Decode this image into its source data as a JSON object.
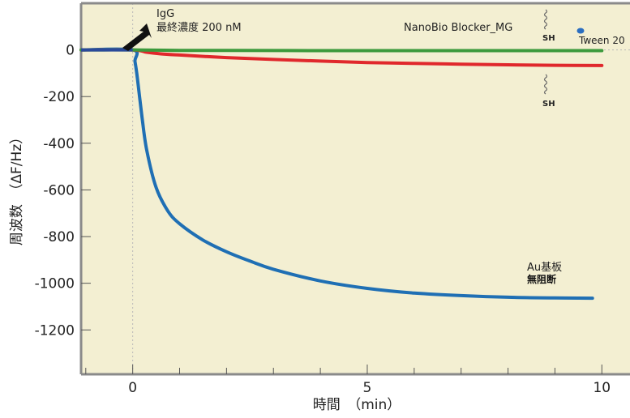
{
  "chart_data": {
    "type": "line",
    "title": "",
    "xlabel": "時間　（min）",
    "ylabel": "周波数　（ΔF/Hz）",
    "xlim": [
      -1.1,
      10.6
    ],
    "ylim": [
      -1390,
      200
    ],
    "x_ticks": [
      0,
      5,
      10
    ],
    "x_tick_labels": [
      "0",
      "5",
      "10"
    ],
    "y_ticks": [
      0,
      -200,
      -400,
      -600,
      -800,
      -1000,
      -1200
    ],
    "y_tick_labels": [
      "0",
      "-200",
      "-400",
      "-600",
      "-800",
      "-1000",
      "-1200"
    ],
    "grid": false,
    "colors": {
      "plot_background": "#f3efd2",
      "frame": "#8a8a8a",
      "green": "#3c9a3c",
      "red": "#e0282c",
      "blue": "#1f6fb4",
      "baseline_blue": "#2a4a9a"
    },
    "series": [
      {
        "color": "#1f6fb4",
        "x": [
          -1.1,
          0,
          0.05,
          0.1,
          0.2,
          0.3,
          0.5,
          0.75,
          1,
          1.5,
          2,
          2.5,
          3,
          4,
          5,
          6,
          7,
          8,
          9,
          9.8
        ],
        "y": [
          0,
          0,
          -50,
          -120,
          -290,
          -430,
          -590,
          -690,
          -745,
          -815,
          -865,
          -905,
          -940,
          -990,
          -1022,
          -1042,
          -1053,
          -1060,
          -1063,
          -1064
        ]
      },
      {
        "color": "#e0282c",
        "x": [
          -1.1,
          0,
          0.3,
          0.6,
          1,
          2,
          3,
          4,
          5,
          6,
          7,
          8,
          9,
          10
        ],
        "y": [
          0,
          0,
          -10,
          -17,
          -22,
          -33,
          -41,
          -48,
          -54,
          -58,
          -61,
          -64,
          -66,
          -67
        ]
      },
      {
        "color": "#3c9a3c",
        "x": [
          -1.1,
          0,
          1,
          2,
          4,
          6,
          8,
          10
        ],
        "y": [
          0,
          0,
          -2,
          -2,
          -3,
          -3,
          -3,
          -3
        ]
      }
    ],
    "annotations": {
      "igg_line1": "IgG",
      "igg_line2": "最終濃度 200 nM",
      "blocker_label": "NanoBio Blocker_MG",
      "sh_top": "SH",
      "sh_bottom": "SH",
      "tween_label": "Tween 20",
      "au_label": "Au基板",
      "au_sub": "無阻断"
    }
  }
}
